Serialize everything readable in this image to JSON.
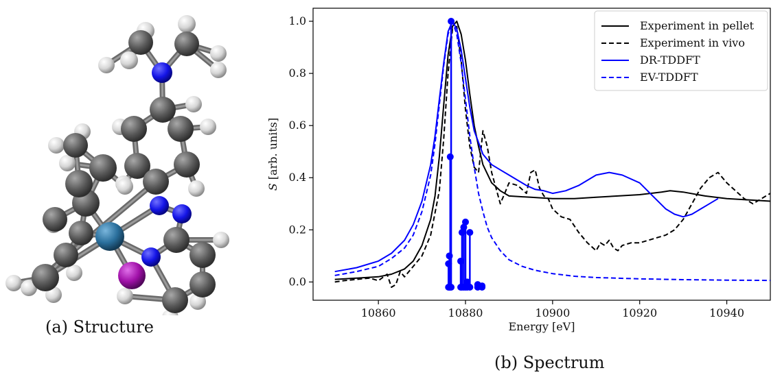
{
  "captions": {
    "structure": "(a) Structure",
    "spectrum": "(b) Spectrum"
  },
  "colors": {
    "experiment": "#000000",
    "theory": "#0000ff",
    "carbon": "#555555",
    "hydrogen": "#e8e8e8",
    "nitrogen": "#1010e0",
    "metal": "#2a6f9c",
    "halogen": "#a010a8"
  },
  "chart_data": {
    "type": "line",
    "xlabel": "Energy [eV]",
    "ylabel_italic": "S",
    "ylabel_rest": " [arb. units]",
    "xlim": [
      10845,
      10950
    ],
    "ylim": [
      -0.07,
      1.05
    ],
    "xticks": [
      10860,
      10880,
      10900,
      10920,
      10940
    ],
    "yticks": [
      0.0,
      0.2,
      0.4,
      0.6,
      0.8,
      1.0
    ],
    "ytick_labels": [
      "0.0",
      "0.2",
      "0.4",
      "0.6",
      "0.8",
      "1.0"
    ],
    "grid": false,
    "legend_position": "top-right",
    "series": [
      {
        "name": "Experiment in pellet",
        "color": "#000000",
        "style": "solid",
        "x": [
          10850,
          10855,
          10860,
          10863,
          10866,
          10868,
          10870,
          10872,
          10873,
          10874,
          10875,
          10876,
          10877,
          10878,
          10879,
          10880,
          10881,
          10882,
          10883,
          10884,
          10886,
          10888,
          10890,
          10895,
          10900,
          10905,
          10910,
          10915,
          10920,
          10925,
          10927,
          10930,
          10935,
          10940,
          10945,
          10950
        ],
        "y": [
          0.01,
          0.015,
          0.02,
          0.03,
          0.05,
          0.08,
          0.14,
          0.24,
          0.33,
          0.48,
          0.68,
          0.87,
          0.98,
          1.0,
          0.95,
          0.85,
          0.72,
          0.6,
          0.52,
          0.45,
          0.38,
          0.35,
          0.33,
          0.325,
          0.32,
          0.32,
          0.325,
          0.33,
          0.335,
          0.345,
          0.35,
          0.345,
          0.33,
          0.32,
          0.315,
          0.31
        ]
      },
      {
        "name": "Experiment in vivo",
        "color": "#000000",
        "style": "dashed",
        "x": [
          10850,
          10852,
          10855,
          10858,
          10860,
          10862,
          10863,
          10864,
          10865,
          10866,
          10868,
          10870,
          10872,
          10874,
          10875,
          10876,
          10877,
          10878,
          10879,
          10880,
          10881,
          10882,
          10883,
          10884,
          10885,
          10886,
          10887,
          10888,
          10889,
          10890,
          10892,
          10894,
          10895,
          10896,
          10897,
          10898,
          10899,
          10900,
          10902,
          10904,
          10906,
          10908,
          10910,
          10911,
          10912,
          10913,
          10914,
          10915,
          10916,
          10918,
          10920,
          10922,
          10924,
          10926,
          10928,
          10930,
          10932,
          10934,
          10936,
          10938,
          10940,
          10942,
          10944,
          10946,
          10948,
          10950
        ],
        "y": [
          0.0,
          0.005,
          0.01,
          0.015,
          0.005,
          0.03,
          -0.02,
          -0.01,
          0.04,
          0.02,
          0.06,
          0.1,
          0.18,
          0.35,
          0.55,
          0.8,
          0.97,
          0.98,
          0.85,
          0.66,
          0.52,
          0.44,
          0.42,
          0.58,
          0.52,
          0.42,
          0.36,
          0.3,
          0.34,
          0.38,
          0.37,
          0.34,
          0.42,
          0.43,
          0.36,
          0.33,
          0.32,
          0.28,
          0.25,
          0.24,
          0.19,
          0.15,
          0.12,
          0.15,
          0.14,
          0.16,
          0.13,
          0.12,
          0.14,
          0.15,
          0.15,
          0.16,
          0.17,
          0.18,
          0.2,
          0.24,
          0.3,
          0.36,
          0.4,
          0.42,
          0.38,
          0.35,
          0.32,
          0.3,
          0.32,
          0.34
        ]
      },
      {
        "name": "DR-TDDFT",
        "color": "#0000ff",
        "style": "solid",
        "x": [
          10850,
          10855,
          10860,
          10863,
          10866,
          10868,
          10870,
          10872,
          10873,
          10874,
          10875,
          10876,
          10877,
          10878,
          10879,
          10880,
          10881,
          10882,
          10884,
          10886,
          10888,
          10890,
          10892,
          10894,
          10896,
          10898,
          10900,
          10903,
          10906,
          10910,
          10913,
          10916,
          10920,
          10923,
          10926,
          10928,
          10930,
          10932,
          10934,
          10936,
          10938
        ],
        "y": [
          0.04,
          0.055,
          0.08,
          0.11,
          0.16,
          0.22,
          0.31,
          0.45,
          0.56,
          0.7,
          0.84,
          0.96,
          1.0,
          0.97,
          0.89,
          0.78,
          0.67,
          0.58,
          0.49,
          0.45,
          0.43,
          0.41,
          0.39,
          0.37,
          0.355,
          0.35,
          0.34,
          0.35,
          0.37,
          0.41,
          0.42,
          0.41,
          0.38,
          0.33,
          0.28,
          0.26,
          0.25,
          0.26,
          0.28,
          0.3,
          0.32
        ]
      },
      {
        "name": "EV-TDDFT",
        "color": "#0000ff",
        "style": "dashed",
        "x": [
          10850,
          10855,
          10860,
          10863,
          10866,
          10868,
          10870,
          10872,
          10873,
          10874,
          10875,
          10876,
          10877,
          10878,
          10879,
          10880,
          10881,
          10882,
          10883,
          10884,
          10885,
          10886,
          10888,
          10890,
          10893,
          10896,
          10900,
          10905,
          10910,
          10920,
          10930,
          10940,
          10950
        ],
        "y": [
          0.025,
          0.04,
          0.06,
          0.09,
          0.13,
          0.18,
          0.27,
          0.41,
          0.53,
          0.68,
          0.83,
          0.95,
          1.0,
          0.95,
          0.84,
          0.7,
          0.56,
          0.44,
          0.34,
          0.27,
          0.21,
          0.17,
          0.12,
          0.085,
          0.06,
          0.045,
          0.032,
          0.022,
          0.017,
          0.012,
          0.009,
          0.007,
          0.006
        ]
      }
    ],
    "stick_spectrum": {
      "name": "transitions",
      "color": "#0000ff",
      "baseline": -0.02,
      "x": [
        10876.1,
        10876.3,
        10876.5,
        10876.7,
        10878.9,
        10879.2,
        10879.6,
        10880.0,
        10880.4,
        10881.0,
        10882.8,
        10883.8
      ],
      "y": [
        0.07,
        0.1,
        0.48,
        1.0,
        0.08,
        0.19,
        0.21,
        0.23,
        0.0,
        0.19,
        -0.01,
        -0.015
      ]
    }
  }
}
